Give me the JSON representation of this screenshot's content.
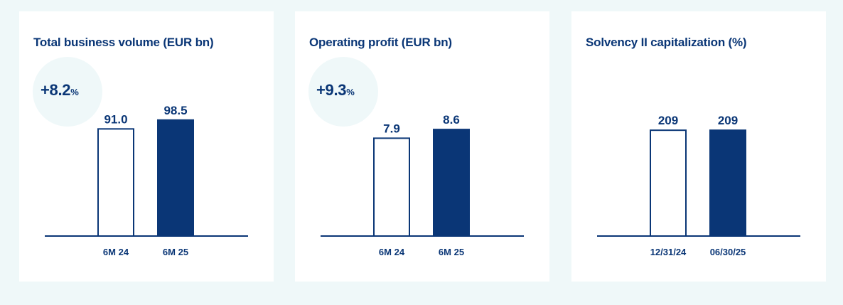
{
  "colors": {
    "background": "#eff8f9",
    "card": "#ffffff",
    "accent": "#0a3676",
    "circle": "#eff8f9"
  },
  "cards": [
    {
      "title": "Total business volume (EUR bn)",
      "growth": {
        "value": "+8.2",
        "unit": "%"
      }
    },
    {
      "title": "Operating profit (EUR bn)",
      "growth": {
        "value": "+9.3",
        "unit": "%"
      }
    },
    {
      "title": "Solvency II capitalization (%)",
      "growth": null
    }
  ],
  "chart_data": [
    {
      "type": "bar",
      "title": "Total business volume (EUR bn)",
      "categories": [
        "6M 24",
        "6M 25"
      ],
      "values": [
        91.0,
        98.5
      ],
      "value_labels": [
        "91.0",
        "98.5"
      ],
      "styles": [
        "outline",
        "filled"
      ],
      "ylim": [
        0,
        120
      ],
      "grid": false
    },
    {
      "type": "bar",
      "title": "Operating profit (EUR bn)",
      "categories": [
        "6M 24",
        "6M 25"
      ],
      "values": [
        7.9,
        8.6
      ],
      "value_labels": [
        "7.9",
        "8.6"
      ],
      "styles": [
        "outline",
        "filled"
      ],
      "ylim": [
        0,
        11.4
      ],
      "grid": false
    },
    {
      "type": "bar",
      "title": "Solvency II capitalization (%)",
      "categories": [
        "12/31/24",
        "06/30/25"
      ],
      "values": [
        209,
        209
      ],
      "value_labels": [
        "209",
        "209"
      ],
      "styles": [
        "outline",
        "filled"
      ],
      "ylim": [
        0,
        279
      ],
      "grid": false
    }
  ]
}
